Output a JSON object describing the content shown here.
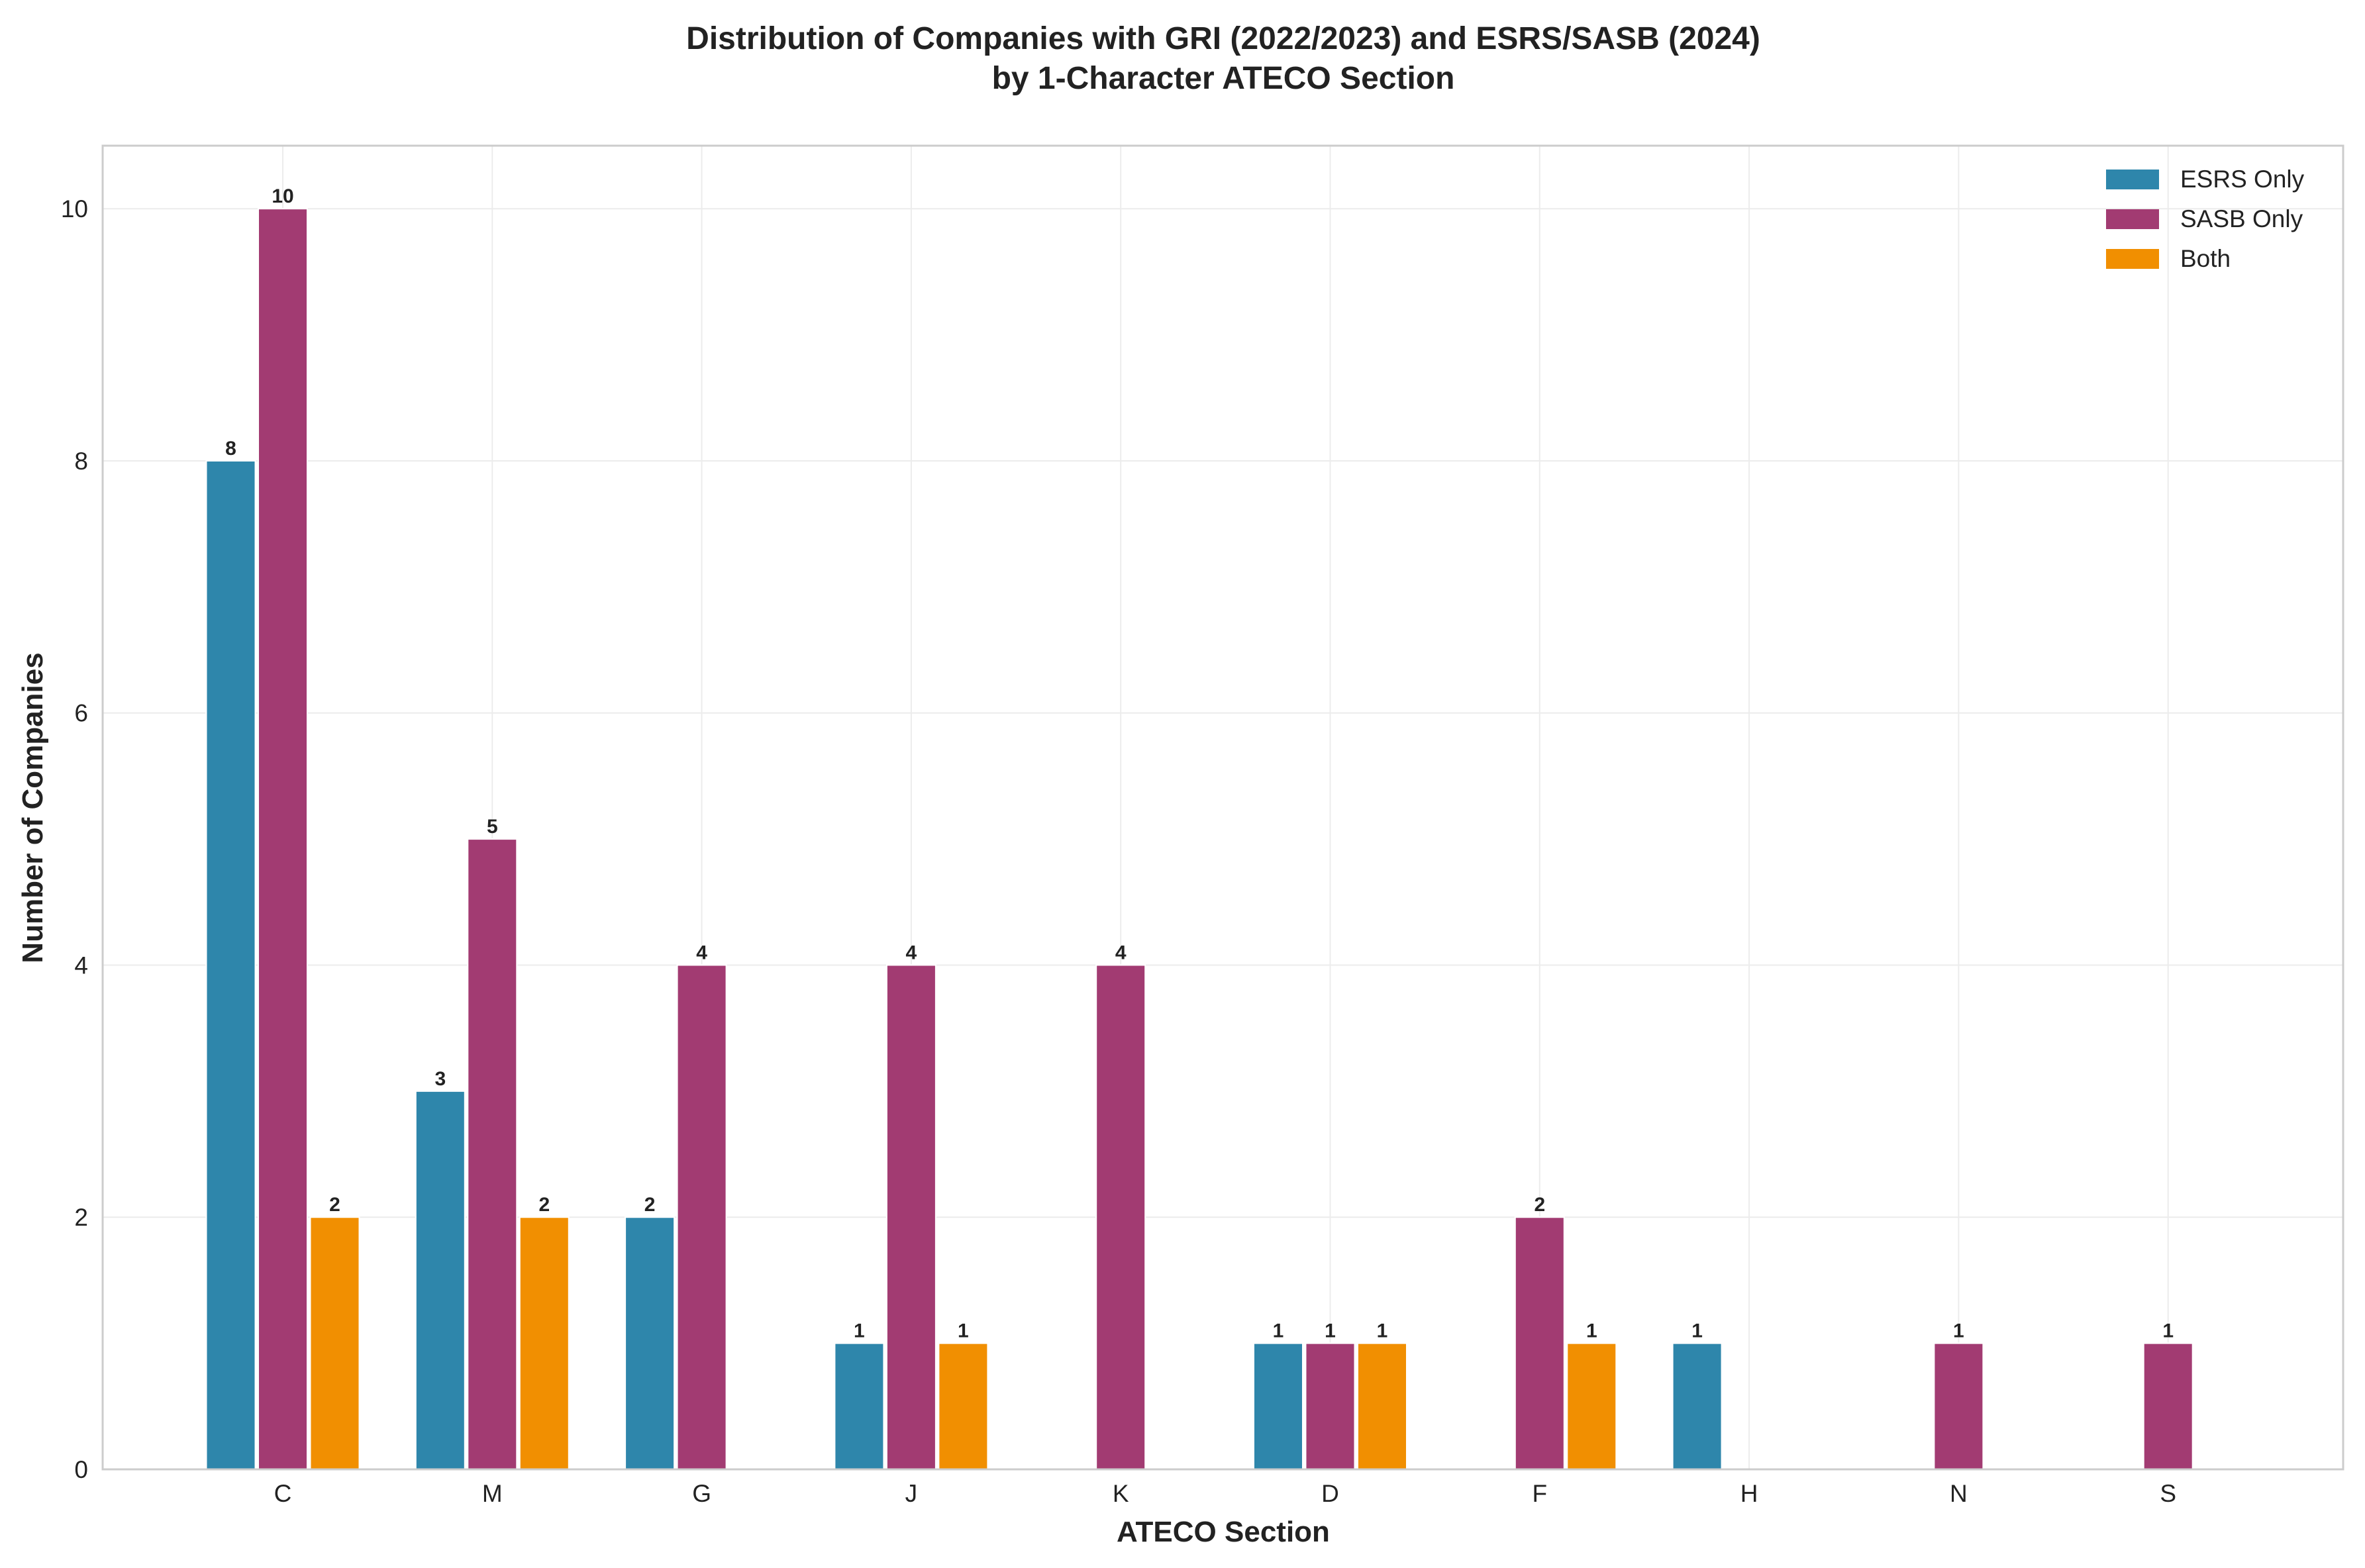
{
  "chart_data": {
    "type": "bar",
    "title_line1": "Distribution of Companies with GRI (2022/2023) and ESRS/SASB (2024)",
    "title_line2": "by 1-Character ATECO Section",
    "xlabel": "ATECO Section",
    "ylabel": "Number of Companies",
    "categories": [
      "C",
      "M",
      "G",
      "J",
      "K",
      "D",
      "F",
      "H",
      "N",
      "S"
    ],
    "ylim": [
      0,
      10.5
    ],
    "yticks": [
      0,
      2,
      4,
      6,
      8,
      10
    ],
    "grid": true,
    "legend_position": "top-right",
    "series": [
      {
        "name": "ESRS Only",
        "color": "#2e86ab",
        "values": [
          8,
          3,
          2,
          1,
          0,
          1,
          0,
          1,
          0,
          0
        ]
      },
      {
        "name": "SASB Only",
        "color": "#a23b72",
        "values": [
          10,
          5,
          4,
          4,
          4,
          1,
          2,
          0,
          1,
          1
        ]
      },
      {
        "name": "Both",
        "color": "#f18f01",
        "values": [
          2,
          2,
          0,
          1,
          0,
          1,
          1,
          0,
          0,
          0
        ]
      }
    ]
  }
}
